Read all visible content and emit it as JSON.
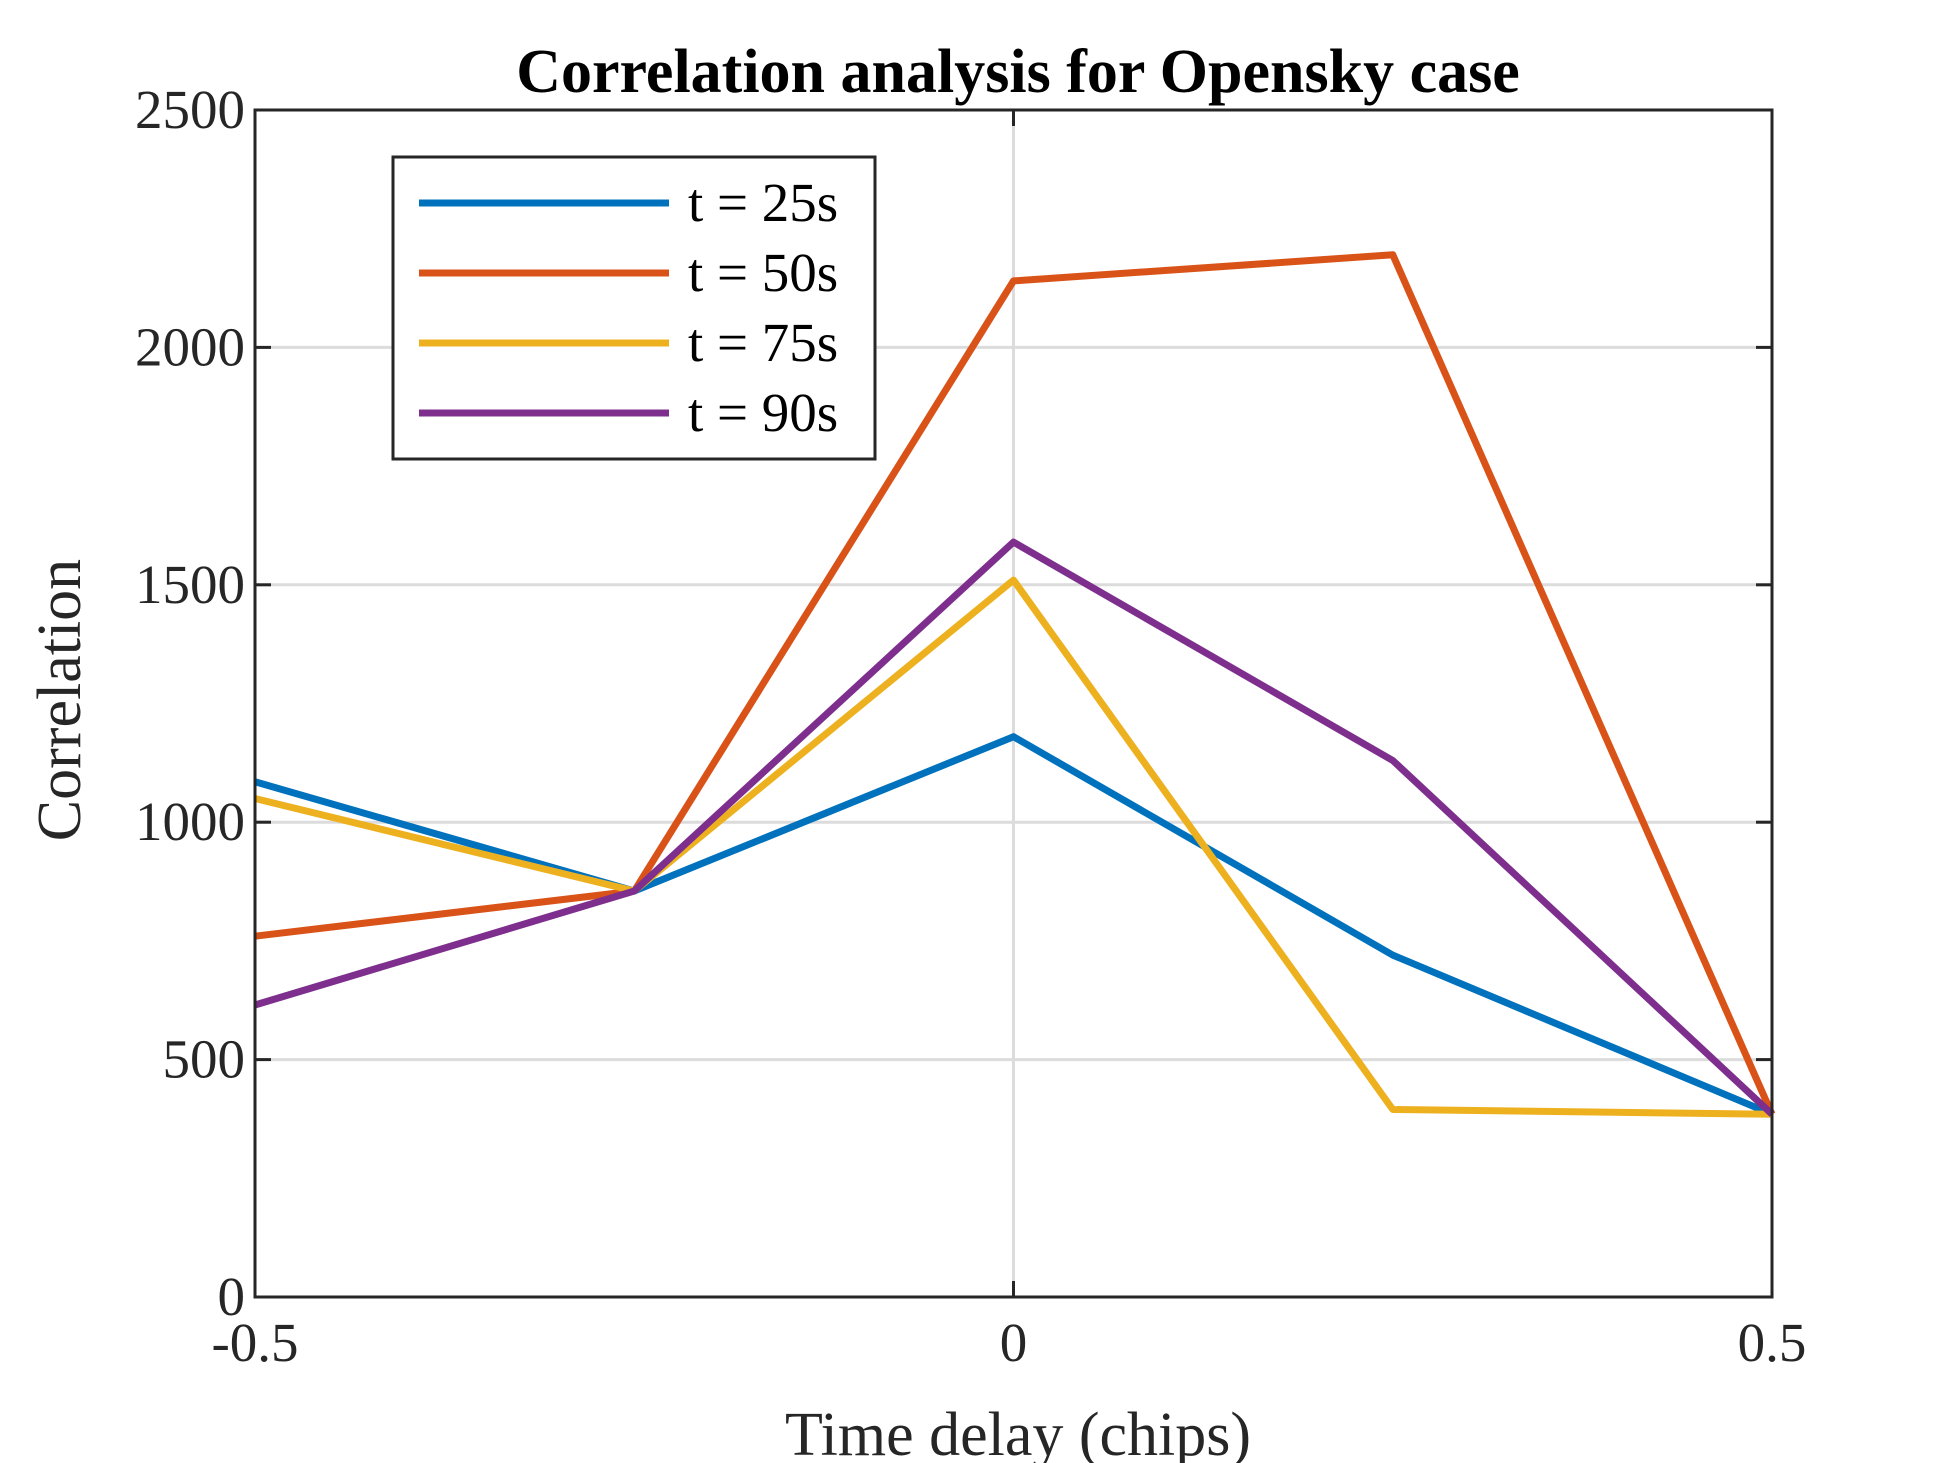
{
  "chart_data": {
    "type": "line",
    "title": "Correlation analysis for Opensky case",
    "xlabel": "Time delay (chips)",
    "ylabel": "Correlation",
    "xlim": [
      -0.5,
      0.5
    ],
    "ylim": [
      0,
      2500
    ],
    "xticks": [
      -0.5,
      0,
      0.5
    ],
    "xtick_labels": [
      "-0.5",
      "0",
      "0.5"
    ],
    "yticks": [
      0,
      500,
      1000,
      1500,
      2000,
      2500
    ],
    "ytick_labels": [
      "0",
      "500",
      "1000",
      "1500",
      "2000",
      "2500"
    ],
    "grid": true,
    "legend_position": "top-left",
    "x": [
      -0.5,
      -0.25,
      0,
      0.25,
      0.5
    ],
    "series": [
      {
        "name": "t = 25s",
        "color": "#0072BD",
        "values": [
          1085,
          855,
          1180,
          720,
          385
        ]
      },
      {
        "name": "t = 50s",
        "color": "#D95319",
        "values": [
          760,
          855,
          2140,
          2195,
          385
        ]
      },
      {
        "name": "t = 75s",
        "color": "#EDB120",
        "values": [
          1050,
          855,
          1510,
          395,
          385
        ]
      },
      {
        "name": "t = 90s",
        "color": "#7E2F8E",
        "values": [
          615,
          855,
          1590,
          1130,
          385
        ]
      }
    ]
  }
}
